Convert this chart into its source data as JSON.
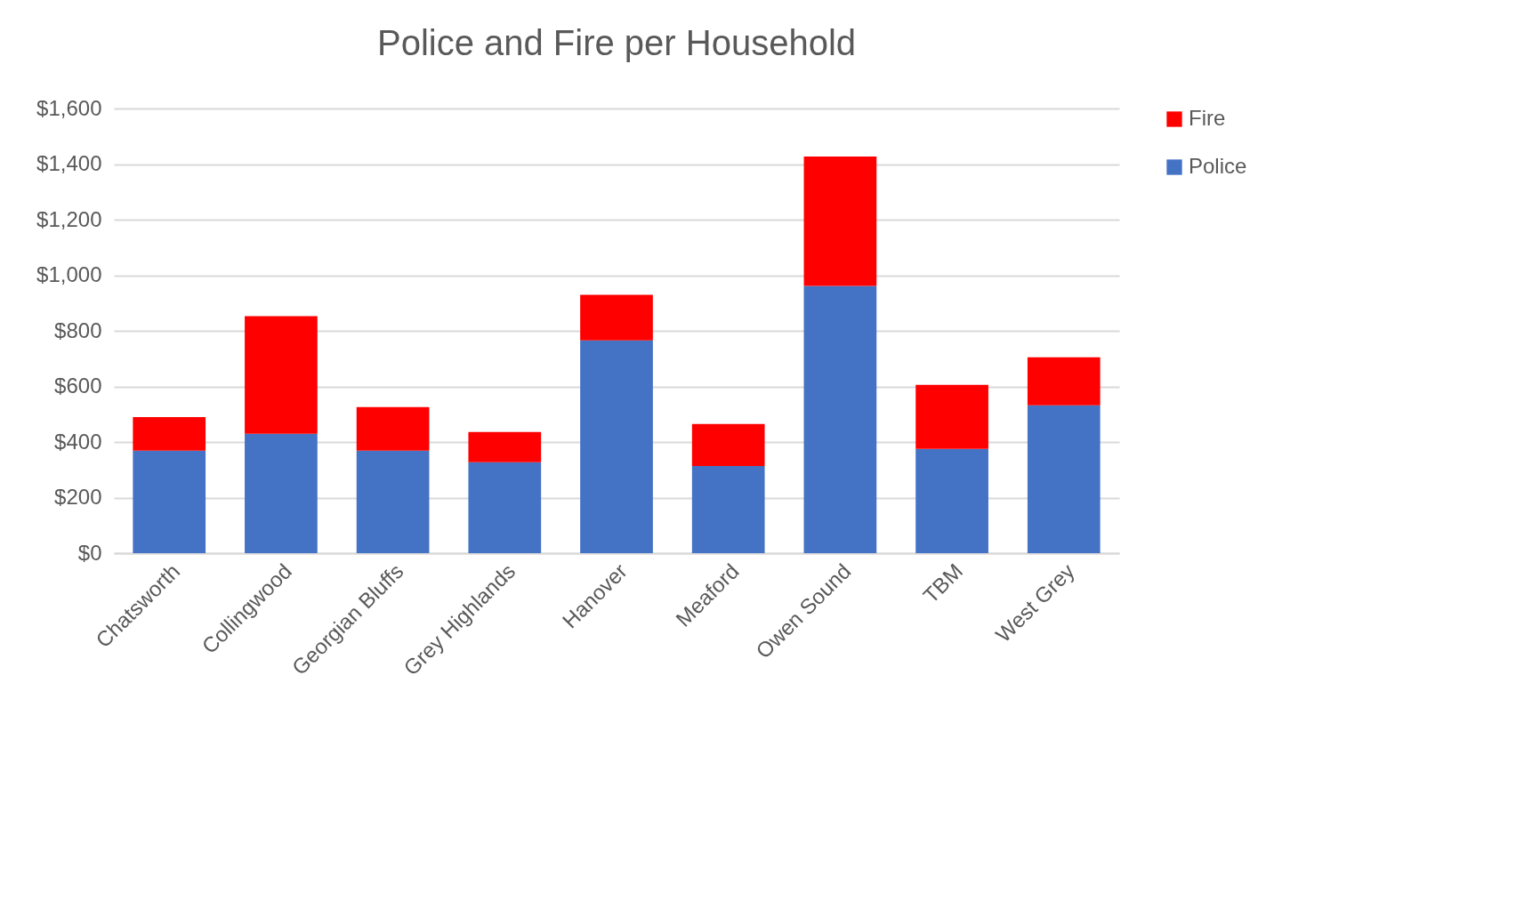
{
  "chart_data": {
    "type": "bar",
    "title": "Police and Fire per Household",
    "stacked": true,
    "categories": [
      "Chatsworth",
      "Collingwood",
      "Georgian Bluffs",
      "Grey Highlands",
      "Hanover",
      "Meaford",
      "Owen Sound",
      "TBM",
      "West Grey"
    ],
    "series": [
      {
        "name": "Police",
        "color": "#4472c4",
        "values": [
          369,
          430,
          369,
          327,
          766,
          314,
          962,
          375,
          532
        ]
      },
      {
        "name": "Fire",
        "color": "#ff0000",
        "values": [
          121,
          423,
          157,
          109,
          164,
          151,
          465,
          231,
          173
        ]
      }
    ],
    "ylim": [
      0,
      1600
    ],
    "yticks": [
      {
        "value": 0,
        "label": "$0"
      },
      {
        "value": 200,
        "label": "$200"
      },
      {
        "value": 400,
        "label": "$400"
      },
      {
        "value": 600,
        "label": "$600"
      },
      {
        "value": 800,
        "label": "$800"
      },
      {
        "value": 1000,
        "label": "$1,000"
      },
      {
        "value": 1200,
        "label": "$1,200"
      },
      {
        "value": 1400,
        "label": "$1,400"
      },
      {
        "value": 1600,
        "label": "$1,600"
      }
    ],
    "grid": "y",
    "legend": "right"
  }
}
